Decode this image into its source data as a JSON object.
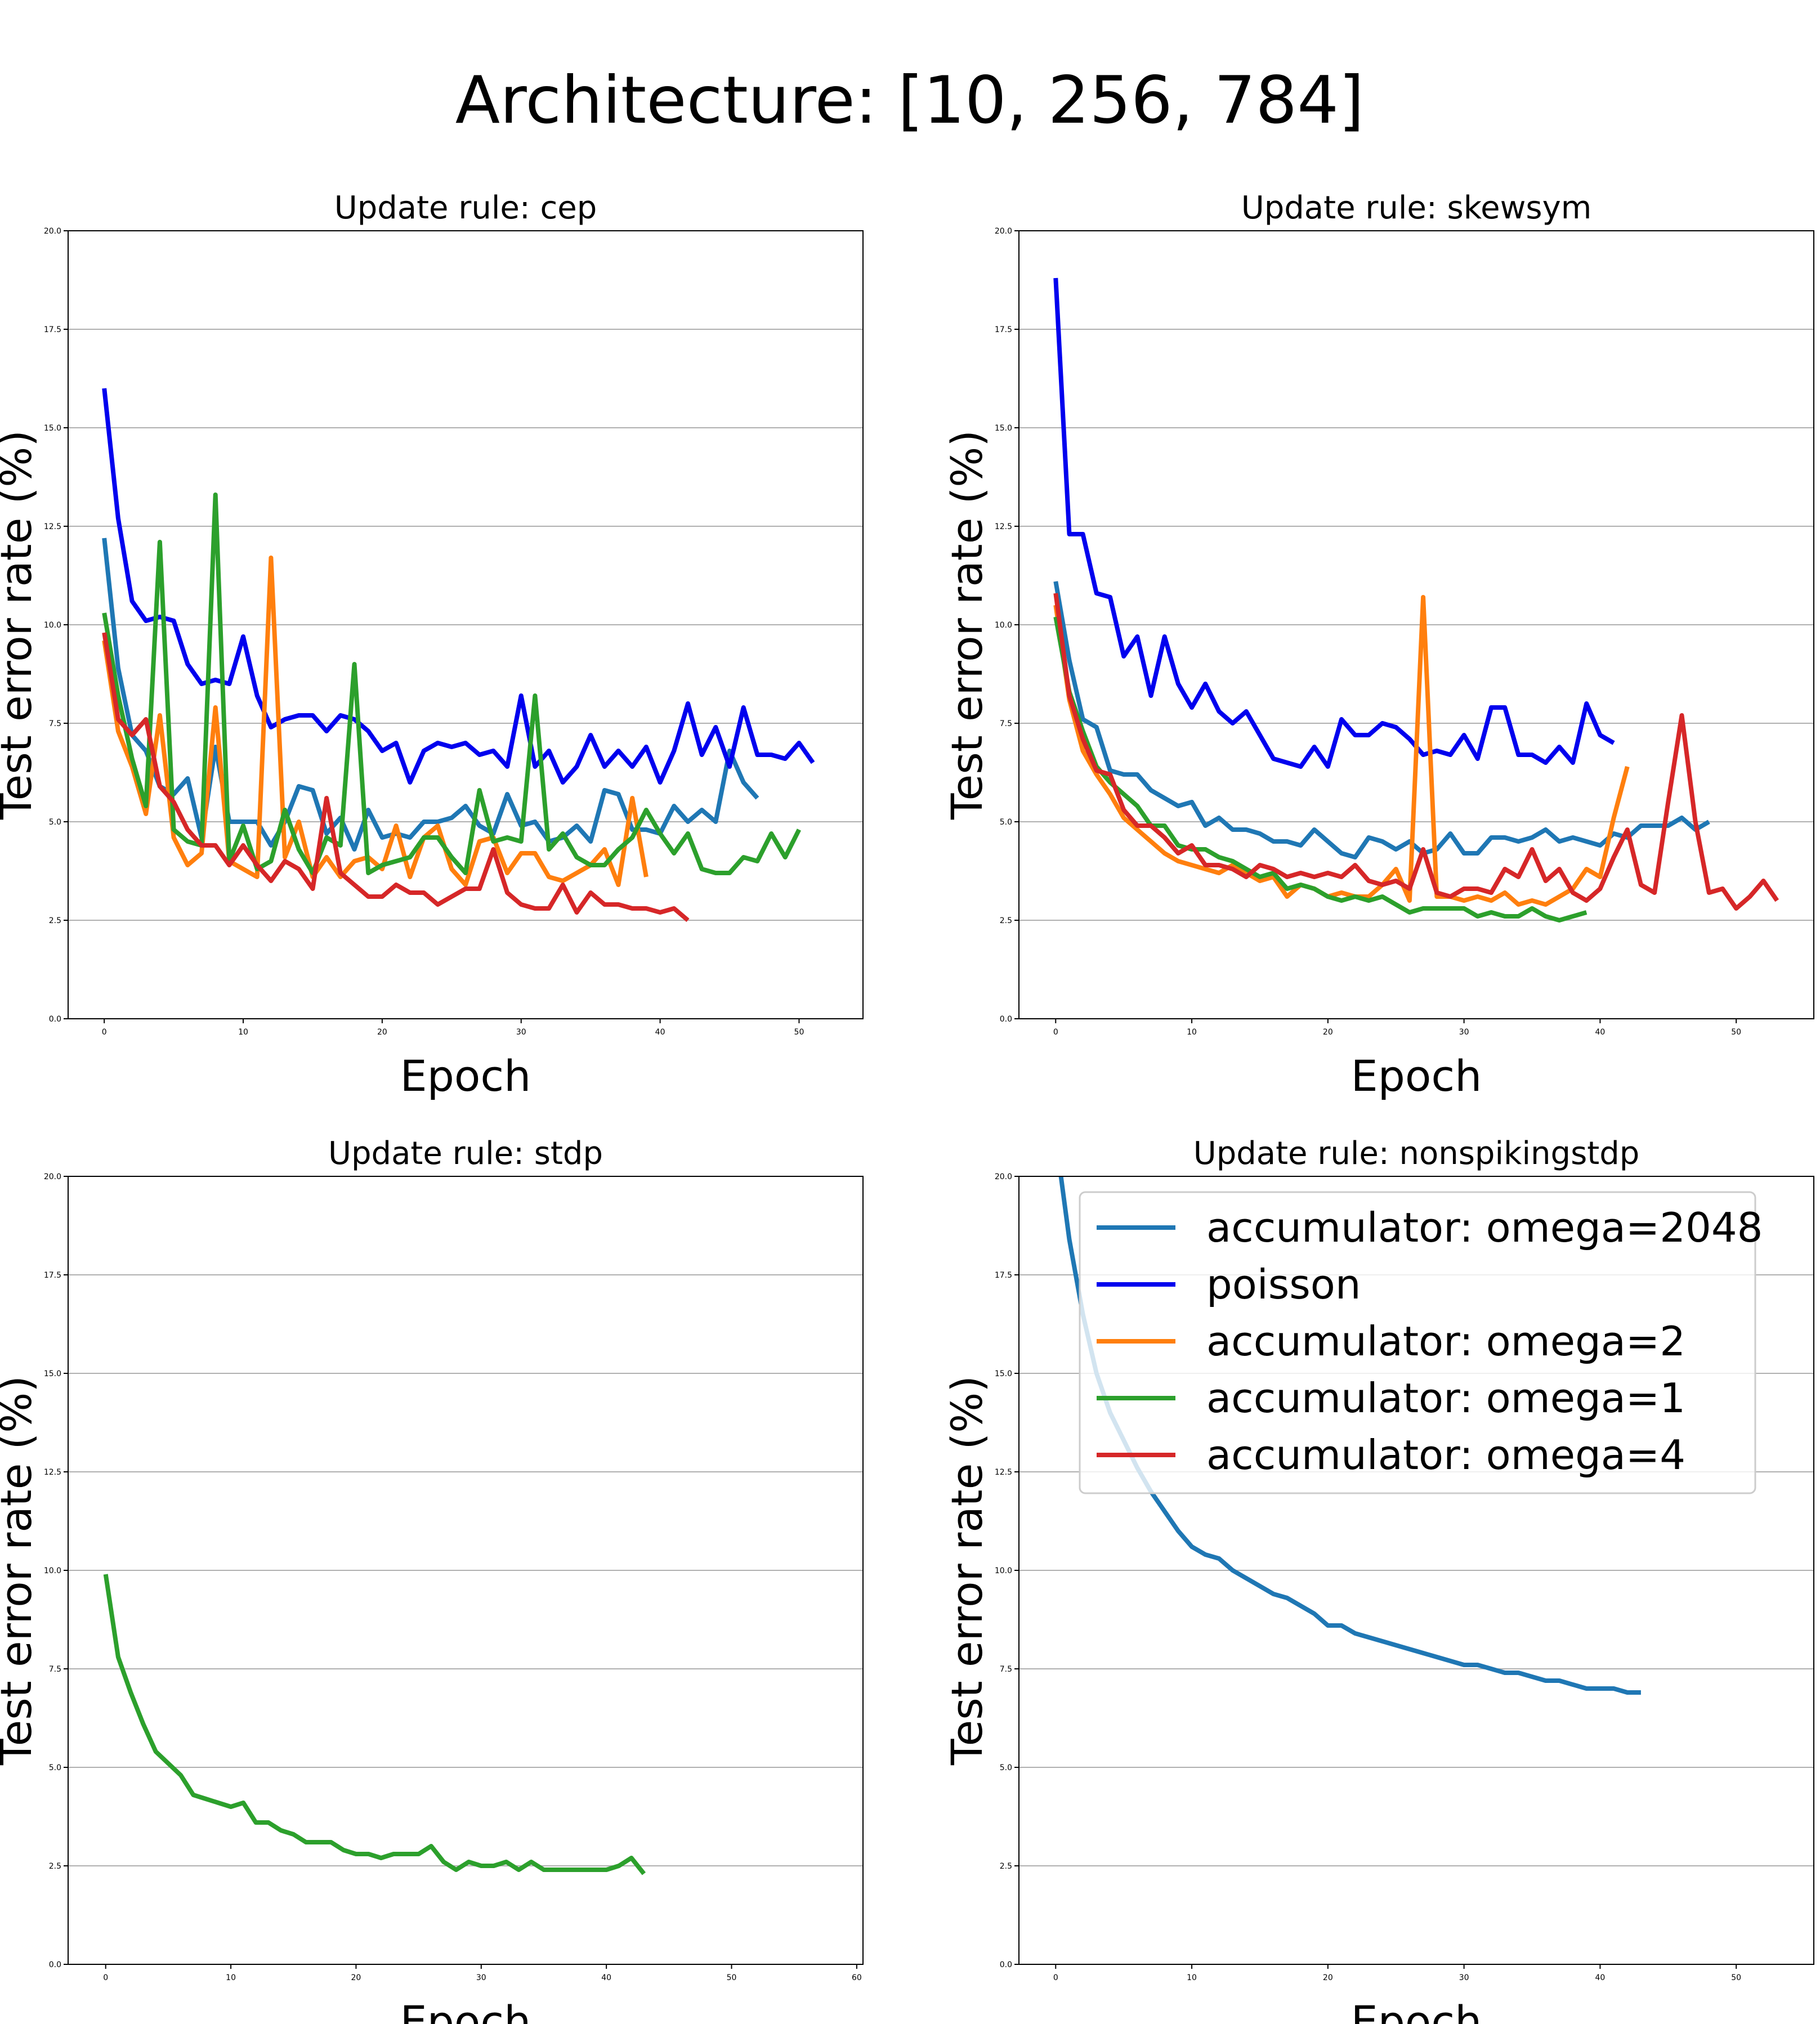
{
  "figure": {
    "suptitle": "Architecture: [10, 256, 784]"
  },
  "chart_data": [
    {
      "type": "line",
      "title": "Update rule: cep",
      "xlabel": "Epoch",
      "ylabel": "Test error rate (%)",
      "xlim": [
        -2.6,
        54.6
      ],
      "ylim": [
        0,
        20
      ],
      "xticks": [
        0,
        10,
        20,
        30,
        40,
        50
      ],
      "yticks": [
        0.0,
        2.5,
        5.0,
        7.5,
        10.0,
        12.5,
        15.0,
        17.5,
        20.0
      ],
      "grid": "y",
      "legend": "none",
      "series": [
        {
          "name": "accumulator: omega=2048",
          "color": "#1f77b4",
          "values": [
            12.2,
            8.9,
            7.2,
            6.8,
            5.9,
            5.7,
            6.1,
            4.6,
            6.9,
            5.0,
            5.0,
            5.0,
            4.4,
            5.0,
            5.9,
            5.8,
            4.7,
            5.1,
            4.3,
            5.3,
            4.6,
            4.7,
            4.6,
            5.0,
            5.0,
            5.1,
            5.4,
            4.9,
            4.7,
            5.7,
            4.9,
            5.0,
            4.5,
            4.6,
            4.9,
            4.5,
            5.8,
            5.7,
            4.8,
            4.8,
            4.7,
            5.4,
            5.0,
            5.3,
            5.0,
            6.8,
            6.0,
            5.6
          ]
        },
        {
          "name": "poisson",
          "color": "#0000ee",
          "values": [
            16.0,
            12.7,
            10.6,
            10.1,
            10.2,
            10.1,
            9.0,
            8.5,
            8.6,
            8.5,
            9.7,
            8.2,
            7.4,
            7.6,
            7.7,
            7.7,
            7.3,
            7.7,
            7.6,
            7.3,
            6.8,
            7.0,
            6.0,
            6.8,
            7.0,
            6.9,
            7.0,
            6.7,
            6.8,
            6.4,
            8.2,
            6.4,
            6.8,
            6.0,
            6.4,
            7.2,
            6.4,
            6.8,
            6.4,
            6.9,
            6.0,
            6.8,
            8.0,
            6.7,
            7.4,
            6.4,
            7.9,
            6.7,
            6.7,
            6.6,
            7.0,
            6.5
          ]
        },
        {
          "name": "accumulator: omega=2",
          "color": "#ff7f0e",
          "values": [
            9.6,
            7.3,
            6.4,
            5.2,
            7.7,
            4.6,
            3.9,
            4.2,
            7.9,
            4.0,
            3.8,
            3.6,
            11.7,
            4.1,
            5.0,
            3.6,
            4.1,
            3.6,
            4.0,
            4.1,
            3.8,
            4.9,
            3.6,
            4.6,
            4.9,
            3.8,
            3.4,
            4.5,
            4.6,
            3.7,
            4.2,
            4.2,
            3.6,
            3.5,
            3.7,
            3.9,
            4.3,
            3.4,
            5.6,
            3.6
          ]
        },
        {
          "name": "accumulator: omega=1",
          "color": "#2ca02c",
          "values": [
            10.3,
            8.2,
            6.6,
            5.4,
            12.1,
            4.8,
            4.5,
            4.4,
            13.3,
            4.0,
            4.9,
            3.8,
            4.0,
            5.3,
            4.3,
            3.7,
            4.6,
            4.4,
            9.0,
            3.7,
            3.9,
            4.0,
            4.1,
            4.6,
            4.6,
            4.1,
            3.7,
            5.8,
            4.5,
            4.6,
            4.5,
            8.2,
            4.3,
            4.7,
            4.1,
            3.9,
            3.9,
            4.3,
            4.6,
            5.3,
            4.7,
            4.2,
            4.7,
            3.8,
            3.7,
            3.7,
            4.1,
            4.0,
            4.7,
            4.1,
            4.8
          ]
        },
        {
          "name": "accumulator: omega=4",
          "color": "#d62728",
          "values": [
            9.8,
            7.6,
            7.2,
            7.6,
            5.9,
            5.5,
            4.8,
            4.4,
            4.4,
            3.9,
            4.4,
            3.9,
            3.5,
            4.0,
            3.8,
            3.3,
            5.6,
            3.7,
            3.4,
            3.1,
            3.1,
            3.4,
            3.2,
            3.2,
            2.9,
            3.1,
            3.3,
            3.3,
            4.3,
            3.2,
            2.9,
            2.8,
            2.8,
            3.4,
            2.7,
            3.2,
            2.9,
            2.9,
            2.8,
            2.8,
            2.7,
            2.8,
            2.5
          ]
        }
      ]
    },
    {
      "type": "line",
      "title": "Update rule: skewsym",
      "xlabel": "Epoch",
      "ylabel": "Test error rate (%)",
      "xlim": [
        -2.7,
        55.7
      ],
      "ylim": [
        0,
        20
      ],
      "xticks": [
        0,
        10,
        20,
        30,
        40,
        50
      ],
      "yticks": [
        0.0,
        2.5,
        5.0,
        7.5,
        10.0,
        12.5,
        15.0,
        17.5,
        20.0
      ],
      "grid": "y",
      "legend": "none",
      "series": [
        {
          "name": "accumulator: omega=2048",
          "color": "#1f77b4",
          "values": [
            11.1,
            9.1,
            7.6,
            7.4,
            6.3,
            6.2,
            6.2,
            5.8,
            5.6,
            5.4,
            5.5,
            4.9,
            5.1,
            4.8,
            4.8,
            4.7,
            4.5,
            4.5,
            4.4,
            4.8,
            4.5,
            4.2,
            4.1,
            4.6,
            4.5,
            4.3,
            4.5,
            4.2,
            4.3,
            4.7,
            4.2,
            4.2,
            4.6,
            4.6,
            4.5,
            4.6,
            4.8,
            4.5,
            4.6,
            4.5,
            4.4,
            4.7,
            4.6,
            4.9,
            4.9,
            4.9,
            5.1,
            4.8,
            5.0
          ]
        },
        {
          "name": "poisson",
          "color": "#0000ee",
          "values": [
            18.8,
            12.3,
            12.3,
            10.8,
            10.7,
            9.2,
            9.7,
            8.2,
            9.7,
            8.5,
            7.9,
            8.5,
            7.8,
            7.5,
            7.8,
            7.2,
            6.6,
            6.5,
            6.4,
            6.9,
            6.4,
            7.6,
            7.2,
            7.2,
            7.5,
            7.4,
            7.1,
            6.7,
            6.8,
            6.7,
            7.2,
            6.6,
            7.9,
            7.9,
            6.7,
            6.7,
            6.5,
            6.9,
            6.5,
            8.0,
            7.2,
            7.0
          ]
        },
        {
          "name": "accumulator: omega=2",
          "color": "#ff7f0e",
          "values": [
            10.5,
            8.1,
            6.8,
            6.2,
            5.7,
            5.1,
            4.8,
            4.5,
            4.2,
            4.0,
            3.9,
            3.8,
            3.7,
            3.9,
            3.7,
            3.5,
            3.6,
            3.1,
            3.4,
            3.3,
            3.1,
            3.2,
            3.1,
            3.1,
            3.4,
            3.8,
            3.0,
            10.7,
            3.1,
            3.1,
            3.0,
            3.1,
            3.0,
            3.2,
            2.9,
            3.0,
            2.9,
            3.1,
            3.3,
            3.8,
            3.6,
            5.1,
            6.4
          ]
        },
        {
          "name": "accumulator: omega=1",
          "color": "#2ca02c",
          "values": [
            10.2,
            8.3,
            7.3,
            6.4,
            6.0,
            5.7,
            5.4,
            4.9,
            4.9,
            4.4,
            4.3,
            4.3,
            4.1,
            4.0,
            3.8,
            3.6,
            3.7,
            3.3,
            3.4,
            3.3,
            3.1,
            3.0,
            3.1,
            3.0,
            3.1,
            2.9,
            2.7,
            2.8,
            2.8,
            2.8,
            2.8,
            2.6,
            2.7,
            2.6,
            2.6,
            2.8,
            2.6,
            2.5,
            2.6,
            2.7
          ]
        },
        {
          "name": "accumulator: omega=4",
          "color": "#d62728",
          "values": [
            10.8,
            8.2,
            7.1,
            6.3,
            6.2,
            5.3,
            4.9,
            4.9,
            4.6,
            4.2,
            4.4,
            3.9,
            3.9,
            3.8,
            3.6,
            3.9,
            3.8,
            3.6,
            3.7,
            3.6,
            3.7,
            3.6,
            3.9,
            3.5,
            3.4,
            3.5,
            3.3,
            4.3,
            3.2,
            3.1,
            3.3,
            3.3,
            3.2,
            3.8,
            3.6,
            4.3,
            3.5,
            3.8,
            3.2,
            3.0,
            3.3,
            4.1,
            4.8,
            3.4,
            3.2,
            5.5,
            7.7,
            5.0,
            3.2,
            3.3,
            2.8,
            3.1,
            3.5,
            3.0
          ]
        }
      ]
    },
    {
      "type": "line",
      "title": "Update rule: stdp",
      "xlabel": "Epoch",
      "ylabel": "Test error rate (%)",
      "xlim": [
        -3.0,
        60.5
      ],
      "ylim": [
        0,
        20
      ],
      "xticks": [
        0,
        10,
        20,
        30,
        40,
        50,
        60
      ],
      "yticks": [
        0.0,
        2.5,
        5.0,
        7.5,
        10.0,
        12.5,
        15.0,
        17.5,
        20.0
      ],
      "grid": "y",
      "legend": "none",
      "series": [
        {
          "name": "accumulator: omega=1",
          "color": "#2ca02c",
          "values": [
            9.9,
            7.8,
            6.9,
            6.1,
            5.4,
            5.1,
            4.8,
            4.3,
            4.2,
            4.1,
            4.0,
            4.1,
            3.6,
            3.6,
            3.4,
            3.3,
            3.1,
            3.1,
            3.1,
            2.9,
            2.8,
            2.8,
            2.7,
            2.8,
            2.8,
            2.8,
            3.0,
            2.6,
            2.4,
            2.6,
            2.5,
            2.5,
            2.6,
            2.4,
            2.6,
            2.4,
            2.4,
            2.4,
            2.4,
            2.4,
            2.4,
            2.5,
            2.7,
            2.3
          ]
        }
      ]
    },
    {
      "type": "line",
      "title": "Update rule: nonspikingstdp",
      "xlabel": "Epoch",
      "ylabel": "Test error rate (%)",
      "xlim": [
        -2.7,
        55.7
      ],
      "ylim": [
        0,
        20
      ],
      "xticks": [
        0,
        10,
        20,
        30,
        40,
        50
      ],
      "yticks": [
        0.0,
        2.5,
        5.0,
        7.5,
        10.0,
        12.5,
        15.0,
        17.5,
        20.0
      ],
      "grid": "y",
      "legend": "upper right",
      "series": [
        {
          "name": "accumulator: omega=2048",
          "color": "#1f77b4",
          "values": [
            21.0,
            18.4,
            16.5,
            15.0,
            14.0,
            13.3,
            12.6,
            12.0,
            11.5,
            11.0,
            10.6,
            10.4,
            10.3,
            10.0,
            9.8,
            9.6,
            9.4,
            9.3,
            9.1,
            8.9,
            8.6,
            8.6,
            8.4,
            8.3,
            8.2,
            8.1,
            8.0,
            7.9,
            7.8,
            7.7,
            7.6,
            7.6,
            7.5,
            7.4,
            7.4,
            7.3,
            7.2,
            7.2,
            7.1,
            7.0,
            7.0,
            7.0,
            6.9,
            6.9
          ]
        }
      ]
    }
  ],
  "legend": {
    "entries": [
      {
        "label": "accumulator: omega=2048",
        "color": "#1f77b4"
      },
      {
        "label": "poisson",
        "color": "#0000ee"
      },
      {
        "label": "accumulator: omega=2",
        "color": "#ff7f0e"
      },
      {
        "label": "accumulator: omega=1",
        "color": "#2ca02c"
      },
      {
        "label": "accumulator: omega=4",
        "color": "#d62728"
      }
    ]
  }
}
